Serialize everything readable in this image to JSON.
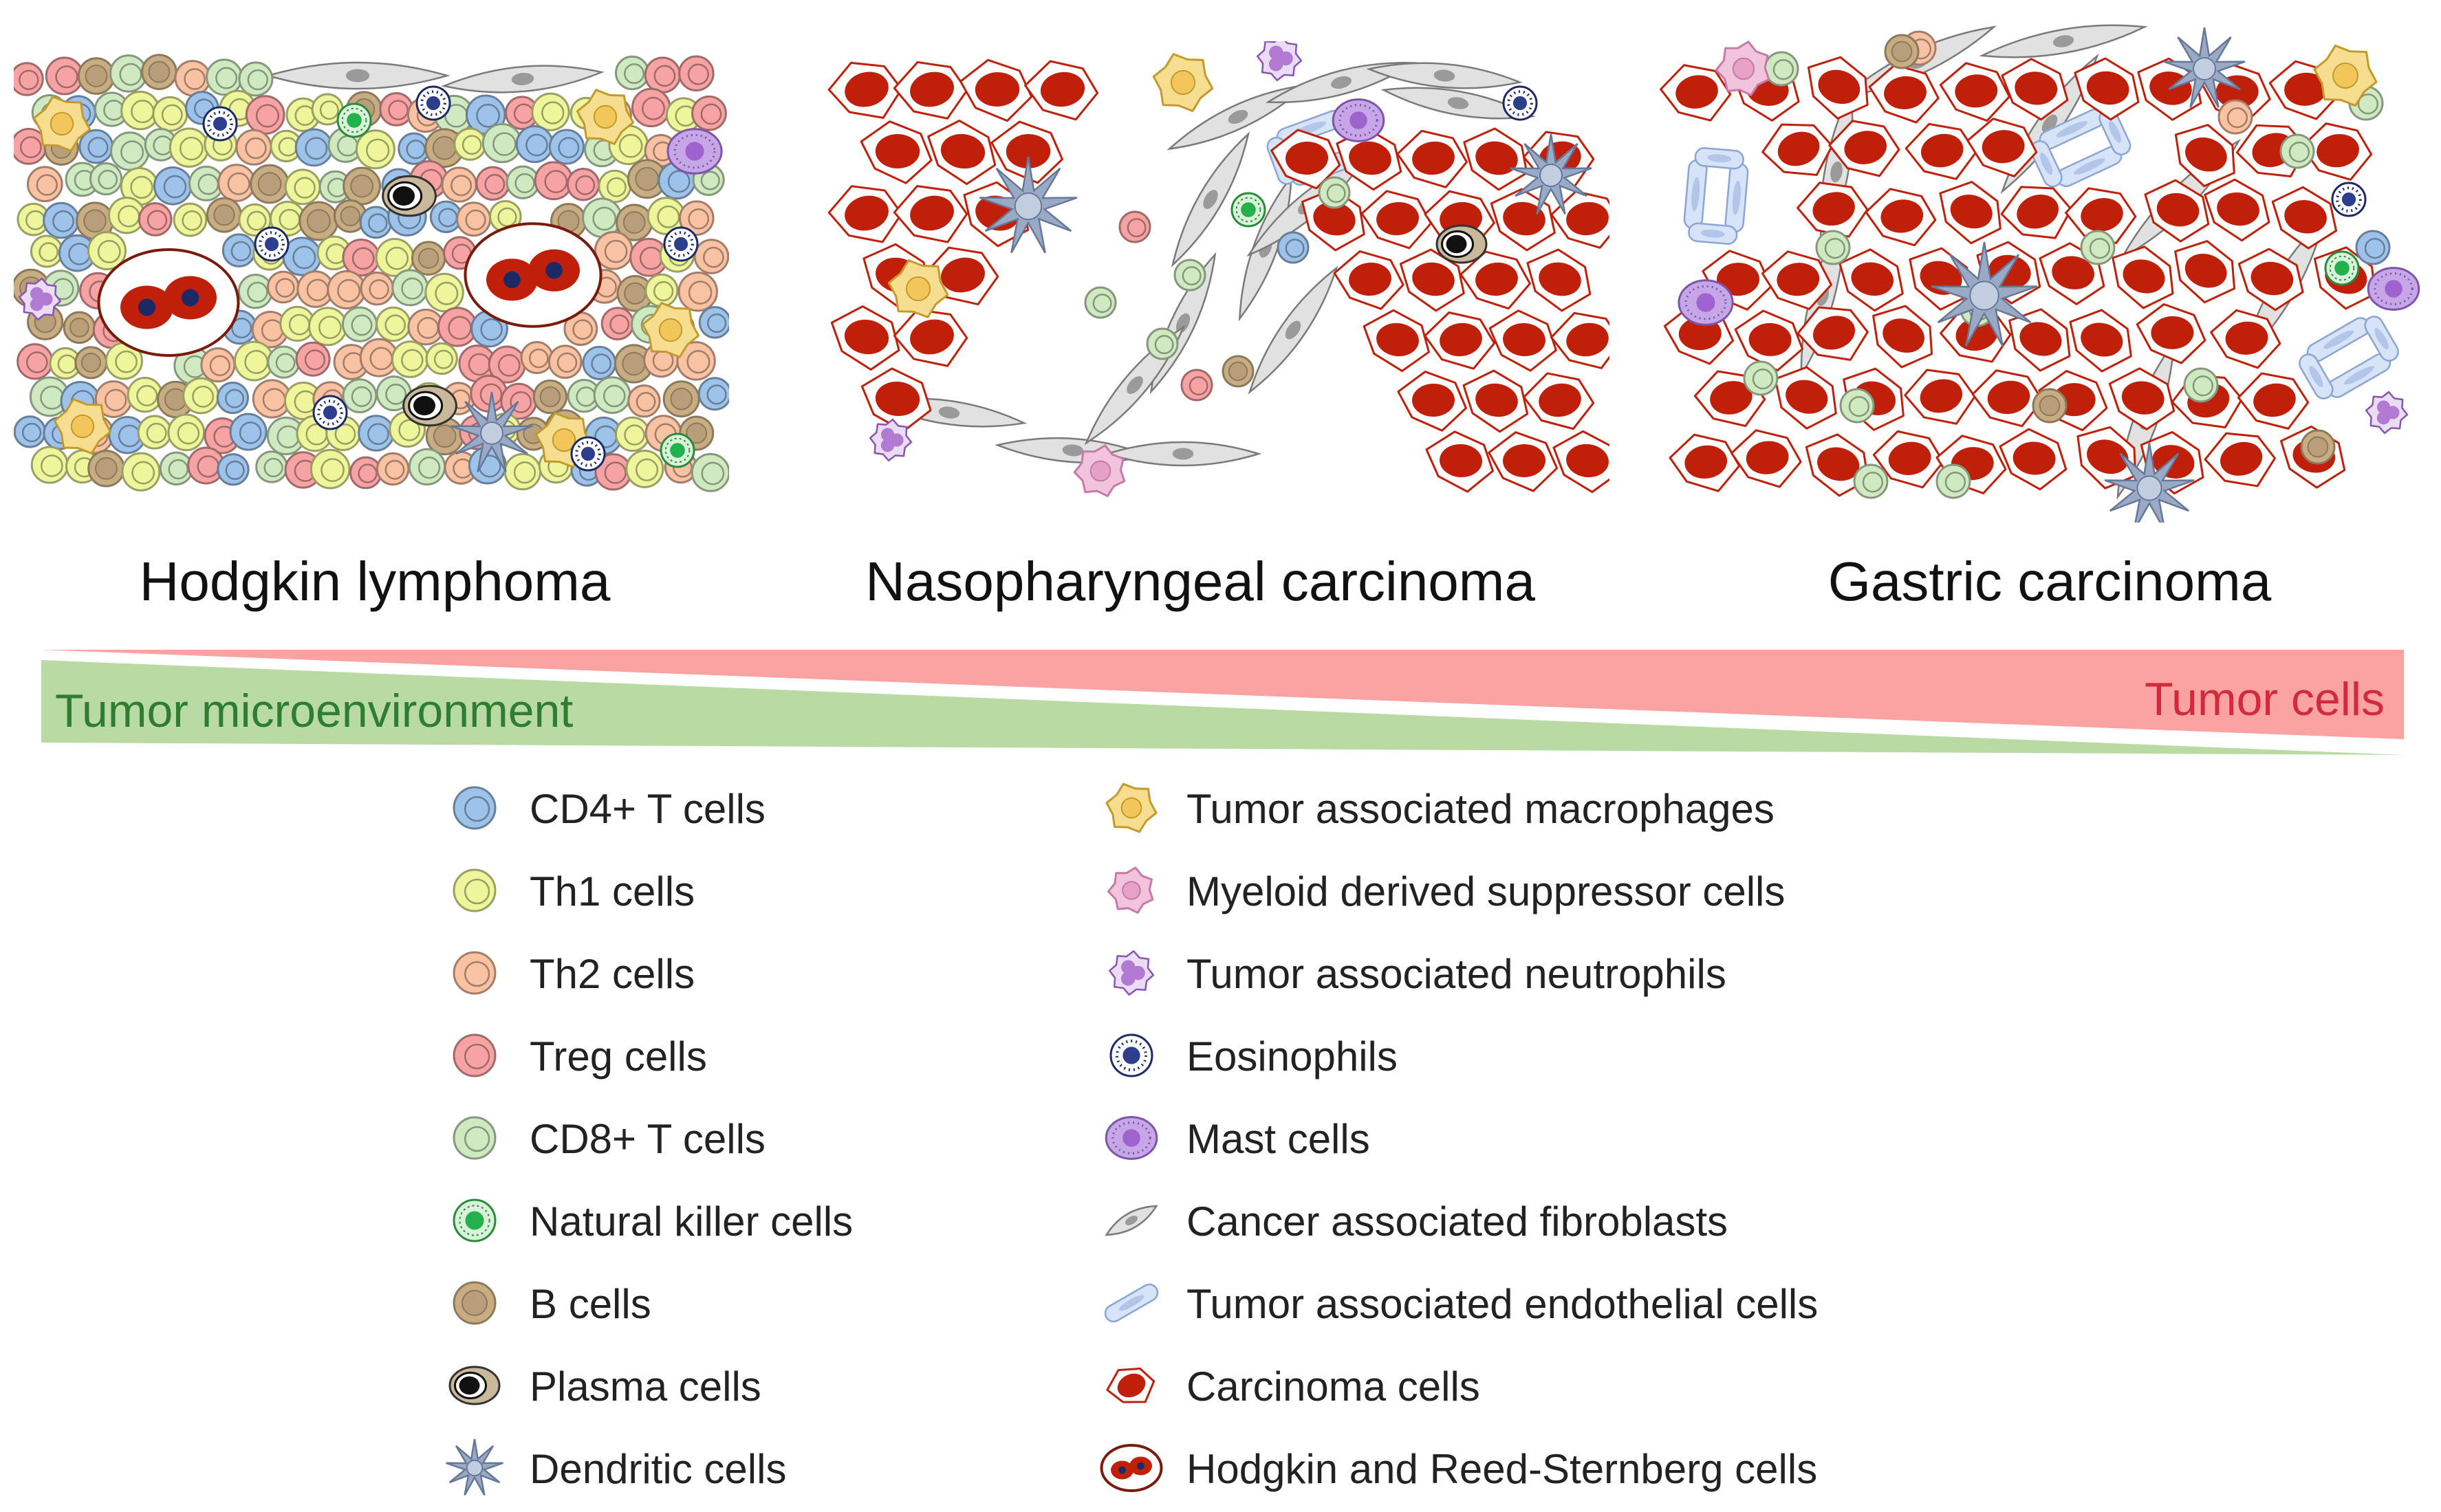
{
  "panels": [
    {
      "id": "hl",
      "title": "Hodgkin lymphoma"
    },
    {
      "id": "npc",
      "title": "Nasopharyngeal carcinoma"
    },
    {
      "id": "gc",
      "title": "Gastric carcinoma"
    }
  ],
  "gradient": {
    "left_label": "Tumor microenvironment",
    "right_label": "Tumor cells",
    "left_color": "#b9dba3",
    "right_color": "#fba3a3",
    "left_text_color": "#2e7d32",
    "right_text_color": "#d12a3a"
  },
  "legend": {
    "left_column": [
      {
        "icon": "cd4-icon",
        "label": "CD4+ T cells"
      },
      {
        "icon": "th1-icon",
        "label": "Th1 cells"
      },
      {
        "icon": "th2-icon",
        "label": "Th2 cells"
      },
      {
        "icon": "treg-icon",
        "label": "Treg cells"
      },
      {
        "icon": "cd8-icon",
        "label": "CD8+ T cells"
      },
      {
        "icon": "nk-icon",
        "label": "Natural killer cells"
      },
      {
        "icon": "bcell-icon",
        "label": "B cells"
      },
      {
        "icon": "plasma-icon",
        "label": "Plasma cells"
      },
      {
        "icon": "dendritic-icon",
        "label": "Dendritic cells"
      }
    ],
    "right_column": [
      {
        "icon": "tam-icon",
        "label": "Tumor associated macrophages"
      },
      {
        "icon": "mdsc-icon",
        "label": "Myeloid derived suppressor cells"
      },
      {
        "icon": "tan-icon",
        "label": "Tumor associated neutrophils"
      },
      {
        "icon": "eosinophil-icon",
        "label": "Eosinophils"
      },
      {
        "icon": "mast-icon",
        "label": "Mast cells"
      },
      {
        "icon": "fibroblast-icon",
        "label": "Cancer associated fibroblasts"
      },
      {
        "icon": "endothelial-icon",
        "label": "Tumor associated endothelial cells"
      },
      {
        "icon": "carcinoma-icon",
        "label": "Carcinoma cells"
      },
      {
        "icon": "hrs-icon",
        "label": "Hodgkin and Reed-Sternberg cells"
      }
    ]
  },
  "colors": {
    "cd4": "#9ec3ea",
    "th1": "#eef59a",
    "th2": "#f9c2a3",
    "treg": "#f7a3a3",
    "cd8": "#cfe9c0",
    "nk": "#22b14c",
    "bcell": "#c8ad83",
    "tam": "#f7dd8f",
    "mdsc": "#f2c3dc",
    "tan": "#b27ad3",
    "eosinophil": "#2c3e8c",
    "mast": "#c6a6e6",
    "fibroblast": "#e1e1e1",
    "endothelial": "#d7e3f7",
    "carcinoma": "#c0200a",
    "dendritic": "#9aaac4"
  }
}
